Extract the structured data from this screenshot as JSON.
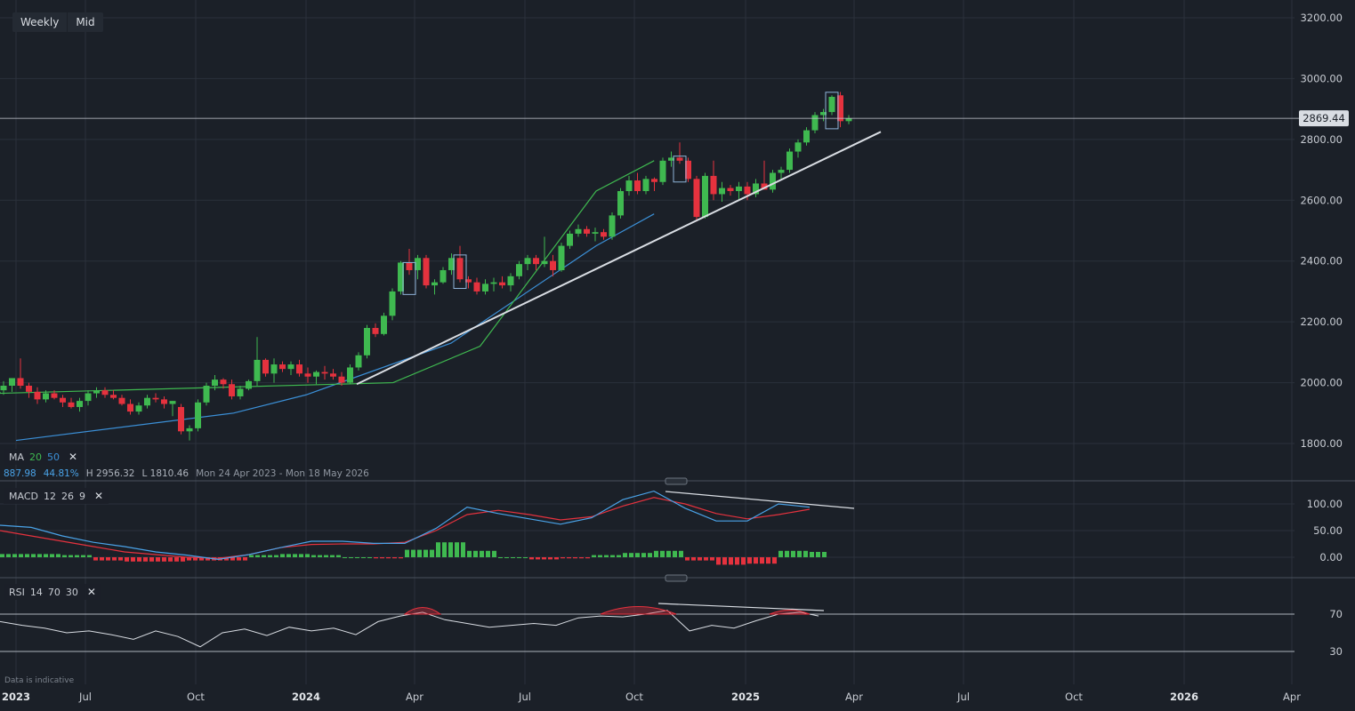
{
  "toolbar": {
    "interval": "Weekly",
    "price_type": "Mid"
  },
  "ma_legend": {
    "label": "MA",
    "p1": "20",
    "p2": "50",
    "p1_color": "#3fb950",
    "p2_color": "#3b8fd6",
    "close": "✕"
  },
  "stats": {
    "v1": "887.98",
    "v2": "44.81%",
    "high": "H 2956.32",
    "low": "L 1810.46",
    "range": "Mon 24 Apr 2023 - Mon 18 May 2026"
  },
  "macd_legend": {
    "label": "MACD",
    "fast": "12",
    "slow": "26",
    "signal": "9",
    "close": "✕"
  },
  "rsi_legend": {
    "label": "RSI",
    "period": "14",
    "upper": "70",
    "lower": "30",
    "close": "✕"
  },
  "footnote": "Data is indicative",
  "colors": {
    "bg": "#1b2028",
    "grid": "#2b313b",
    "up": "#3fb950",
    "down": "#e5323e",
    "ma20": "#3fb950",
    "ma50": "#3b8fd6",
    "macd": "#4aa3e8",
    "signal": "#e5323e",
    "trend": "#d9dde3"
  },
  "chart_data": [
    {
      "type": "candlestick",
      "price_axis": {
        "ticks": [
          "3200.00",
          "3000.00",
          "2800.00",
          "2600.00",
          "2400.00",
          "2200.00",
          "2000.00",
          "1800.00"
        ],
        "ylim": [
          1750,
          3260
        ]
      },
      "time_axis": {
        "labels": [
          "2023",
          "Jul",
          "Oct",
          "2024",
          "Apr",
          "Jul",
          "Oct",
          "2025",
          "Apr",
          "Jul",
          "Oct",
          "2026",
          "Apr"
        ]
      },
      "last_price": "2869.44",
      "grid": true,
      "ohlc": [
        [
          1975,
          2005,
          1960,
          1990
        ],
        [
          1990,
          2010,
          1970,
          2015
        ],
        [
          2015,
          2080,
          1980,
          1990
        ],
        [
          1990,
          2000,
          1950,
          1970
        ],
        [
          1970,
          1985,
          1930,
          1945
        ],
        [
          1945,
          1975,
          1935,
          1965
        ],
        [
          1965,
          1975,
          1945,
          1950
        ],
        [
          1950,
          1960,
          1920,
          1935
        ],
        [
          1935,
          1950,
          1915,
          1920
        ],
        [
          1920,
          1950,
          1905,
          1940
        ],
        [
          1940,
          1975,
          1925,
          1965
        ],
        [
          1965,
          1985,
          1950,
          1975
        ],
        [
          1975,
          1985,
          1950,
          1960
        ],
        [
          1960,
          1975,
          1945,
          1950
        ],
        [
          1950,
          1960,
          1925,
          1930
        ],
        [
          1930,
          1945,
          1895,
          1905
        ],
        [
          1905,
          1935,
          1895,
          1925
        ],
        [
          1925,
          1960,
          1915,
          1950
        ],
        [
          1950,
          1965,
          1935,
          1945
        ],
        [
          1945,
          1955,
          1915,
          1930
        ],
        [
          1930,
          1940,
          1890,
          1940
        ],
        [
          1920,
          1930,
          1830,
          1840
        ],
        [
          1840,
          1860,
          1810,
          1850
        ],
        [
          1850,
          1945,
          1840,
          1935
        ],
        [
          1935,
          2000,
          1925,
          1990
        ],
        [
          1990,
          2025,
          1975,
          2010
        ],
        [
          2010,
          2015,
          1980,
          1995
        ],
        [
          1995,
          2010,
          1945,
          1955
        ],
        [
          1955,
          1990,
          1945,
          1980
        ],
        [
          1980,
          2010,
          1975,
          2005
        ],
        [
          2005,
          2150,
          1990,
          2075
        ],
        [
          2075,
          2080,
          2020,
          2030
        ],
        [
          2030,
          2080,
          2000,
          2060
        ],
        [
          2060,
          2070,
          2035,
          2045
        ],
        [
          2045,
          2070,
          2025,
          2060
        ],
        [
          2060,
          2075,
          2020,
          2030
        ],
        [
          2030,
          2050,
          2000,
          2020
        ],
        [
          2020,
          2040,
          1995,
          2035
        ],
        [
          2035,
          2055,
          2010,
          2030
        ],
        [
          2030,
          2045,
          2010,
          2020
        ],
        [
          2020,
          2035,
          1990,
          2000
        ],
        [
          2000,
          2060,
          1995,
          2050
        ],
        [
          2050,
          2100,
          2040,
          2090
        ],
        [
          2090,
          2190,
          2080,
          2180
        ],
        [
          2180,
          2195,
          2150,
          2160
        ],
        [
          2160,
          2230,
          2155,
          2220
        ],
        [
          2220,
          2310,
          2205,
          2300
        ],
        [
          2300,
          2400,
          2290,
          2395
        ],
        [
          2395,
          2440,
          2355,
          2370
        ],
        [
          2370,
          2420,
          2340,
          2410
        ],
        [
          2410,
          2420,
          2310,
          2320
        ],
        [
          2320,
          2340,
          2290,
          2330
        ],
        [
          2330,
          2380,
          2325,
          2370
        ],
        [
          2370,
          2425,
          2355,
          2410
        ],
        [
          2410,
          2450,
          2330,
          2340
        ],
        [
          2340,
          2350,
          2310,
          2330
        ],
        [
          2330,
          2345,
          2290,
          2300
        ],
        [
          2300,
          2340,
          2290,
          2325
        ],
        [
          2325,
          2345,
          2300,
          2330
        ],
        [
          2330,
          2350,
          2310,
          2320
        ],
        [
          2320,
          2360,
          2300,
          2350
        ],
        [
          2350,
          2400,
          2340,
          2390
        ],
        [
          2390,
          2420,
          2370,
          2410
        ],
        [
          2410,
          2420,
          2370,
          2390
        ],
        [
          2390,
          2480,
          2380,
          2400
        ],
        [
          2400,
          2420,
          2350,
          2370
        ],
        [
          2370,
          2460,
          2365,
          2450
        ],
        [
          2450,
          2500,
          2440,
          2490
        ],
        [
          2490,
          2520,
          2480,
          2505
        ],
        [
          2505,
          2515,
          2480,
          2490
        ],
        [
          2490,
          2510,
          2465,
          2495
        ],
        [
          2495,
          2505,
          2470,
          2480
        ],
        [
          2480,
          2560,
          2470,
          2550
        ],
        [
          2550,
          2640,
          2540,
          2630
        ],
        [
          2630,
          2680,
          2615,
          2665
        ],
        [
          2665,
          2690,
          2620,
          2630
        ],
        [
          2630,
          2680,
          2620,
          2670
        ],
        [
          2670,
          2675,
          2630,
          2660
        ],
        [
          2660,
          2740,
          2650,
          2730
        ],
        [
          2730,
          2760,
          2710,
          2740
        ],
        [
          2740,
          2790,
          2720,
          2730
        ],
        [
          2730,
          2740,
          2660,
          2670
        ],
        [
          2670,
          2680,
          2530,
          2545
        ],
        [
          2545,
          2690,
          2540,
          2680
        ],
        [
          2680,
          2730,
          2600,
          2620
        ],
        [
          2620,
          2660,
          2595,
          2640
        ],
        [
          2640,
          2650,
          2615,
          2630
        ],
        [
          2630,
          2660,
          2600,
          2645
        ],
        [
          2645,
          2660,
          2600,
          2620
        ],
        [
          2620,
          2670,
          2610,
          2655
        ],
        [
          2655,
          2730,
          2640,
          2635
        ],
        [
          2635,
          2700,
          2625,
          2690
        ],
        [
          2690,
          2710,
          2670,
          2700
        ],
        [
          2700,
          2770,
          2690,
          2760
        ],
        [
          2760,
          2800,
          2740,
          2790
        ],
        [
          2790,
          2840,
          2780,
          2830
        ],
        [
          2830,
          2890,
          2820,
          2880
        ],
        [
          2880,
          2900,
          2860,
          2890
        ],
        [
          2890,
          2945,
          2880,
          2940
        ],
        [
          2945,
          2956,
          2840,
          2860
        ],
        [
          2860,
          2880,
          2850,
          2869
        ]
      ],
      "ma20_line": [
        [
          1700,
          1970
        ],
        [
          2000,
          1965
        ],
        [
          2024.3,
          2000
        ],
        [
          2024.6,
          2120
        ],
        [
          2025.0,
          2630
        ],
        [
          2025.2,
          2730
        ]
      ],
      "ma50_line": [
        [
          2023.0,
          1810
        ],
        [
          2023.75,
          1900
        ],
        [
          2024.0,
          1960
        ],
        [
          2024.5,
          2130
        ],
        [
          2025.0,
          2450
        ],
        [
          2025.2,
          2555
        ]
      ],
      "trendline": {
        "from": [
          "2024-02",
          1995
        ],
        "to": [
          "2025-04",
          2825
        ]
      }
    },
    {
      "type": "line",
      "indicator": "MACD",
      "y_ticks": [
        "100.00",
        "50.00",
        "0.00"
      ],
      "series": [
        {
          "role": "macd",
          "values": [
            60,
            56,
            40,
            28,
            20,
            10,
            4,
            -4,
            5,
            18,
            30,
            30,
            26,
            26,
            54,
            94,
            82,
            72,
            62,
            74,
            108,
            124,
            92,
            68,
            68,
            100,
            94
          ]
        },
        {
          "role": "signal",
          "values": [
            50,
            40,
            30,
            20,
            10,
            5,
            0,
            -2,
            5,
            18,
            24,
            25,
            25,
            28,
            50,
            80,
            88,
            80,
            70,
            76,
            96,
            112,
            100,
            82,
            72,
            80,
            90
          ]
        },
        {
          "role": "histogram",
          "values": [
            6,
            6,
            4,
            -6,
            -8,
            -8,
            -6,
            -6,
            4,
            6,
            4,
            0,
            -2,
            14,
            28,
            12,
            0,
            -4,
            -2,
            4,
            8,
            12,
            -6,
            -14,
            -12,
            12,
            10
          ]
        }
      ]
    },
    {
      "type": "line",
      "indicator": "RSI",
      "y_ticks": [
        "70",
        "30"
      ],
      "values": [
        62,
        58,
        55,
        50,
        52,
        48,
        43,
        52,
        46,
        35,
        50,
        54,
        47,
        56,
        52,
        55,
        48,
        62,
        68,
        72,
        64,
        60,
        56,
        58,
        60,
        58,
        66,
        68,
        67,
        70,
        74,
        52,
        58,
        55,
        63,
        70,
        72,
        68
      ]
    }
  ]
}
